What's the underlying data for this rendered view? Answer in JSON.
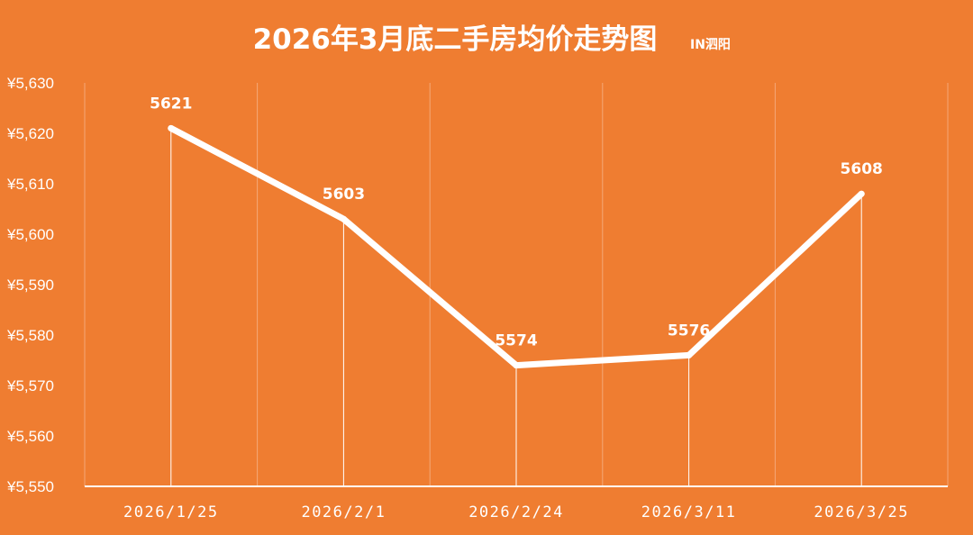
{
  "title": "2026年3月底二手房均价走势图",
  "subtitle": "IN泗阳",
  "colors": {
    "background": "#EF7D31",
    "line": "#FFFFFF",
    "gridline": "#F4A877",
    "text": "#FFFFFF"
  },
  "chart_data": {
    "type": "line",
    "title": "2026年3月底二手房均价走势图",
    "subtitle": "IN泗阳",
    "categories": [
      "2026/1/25",
      "2026/2/1",
      "2026/2/24",
      "2026/3/11",
      "2026/3/25"
    ],
    "series": [
      {
        "values": [
          5621,
          5603,
          5574,
          5576,
          5608
        ],
        "data_labels": [
          "5621",
          "5603",
          "5574",
          "5576",
          "5608"
        ]
      }
    ],
    "ylim": [
      5550,
      5630
    ],
    "yticks": [
      5550,
      5560,
      5570,
      5580,
      5590,
      5600,
      5610,
      5620,
      5630
    ],
    "ytick_labels": [
      "¥5,550",
      "¥5,560",
      "¥5,570",
      "¥5,580",
      "¥5,590",
      "¥5,600",
      "¥5,610",
      "¥5,620",
      "¥5,630"
    ],
    "xlabel": "",
    "ylabel": "",
    "grid": "vertical",
    "drop_lines": true,
    "legend": "none"
  }
}
